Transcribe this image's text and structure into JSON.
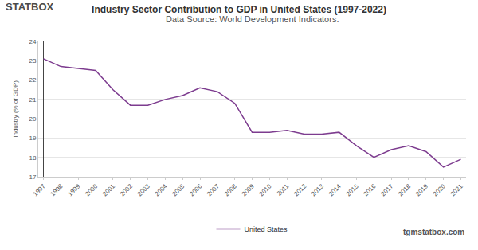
{
  "chart_data": {
    "type": "line",
    "title": "Industry Sector Contribution to GDP in United States (1997-2022)",
    "subtitle": "Data Source: World Development Indicators.",
    "y_label": "Industry (% of GDP)",
    "categories": [
      "1997",
      "1998",
      "1999",
      "2000",
      "2001",
      "2002",
      "2003",
      "2004",
      "2005",
      "2006",
      "2007",
      "2008",
      "2009",
      "2010",
      "2011",
      "2012",
      "2013",
      "2014",
      "2015",
      "2016",
      "2017",
      "2018",
      "2019",
      "2020",
      "2021"
    ],
    "series": [
      {
        "name": "United States",
        "color": "#7d3c8f",
        "values": [
          23.1,
          22.7,
          22.6,
          22.5,
          21.5,
          20.7,
          20.7,
          21.0,
          21.2,
          21.6,
          21.4,
          20.8,
          19.3,
          19.3,
          19.4,
          19.2,
          19.2,
          19.3,
          18.6,
          18.0,
          18.4,
          18.6,
          18.3,
          17.5,
          17.9
        ]
      }
    ],
    "ylim": [
      17,
      24
    ],
    "yticks": [
      17,
      18,
      19,
      20,
      21,
      22,
      23,
      24
    ],
    "grid": true,
    "legend": "bottom",
    "annotations": [
      {
        "text": "STATBOX"
      },
      {
        "text": "tgmstatbox.com"
      }
    ]
  }
}
